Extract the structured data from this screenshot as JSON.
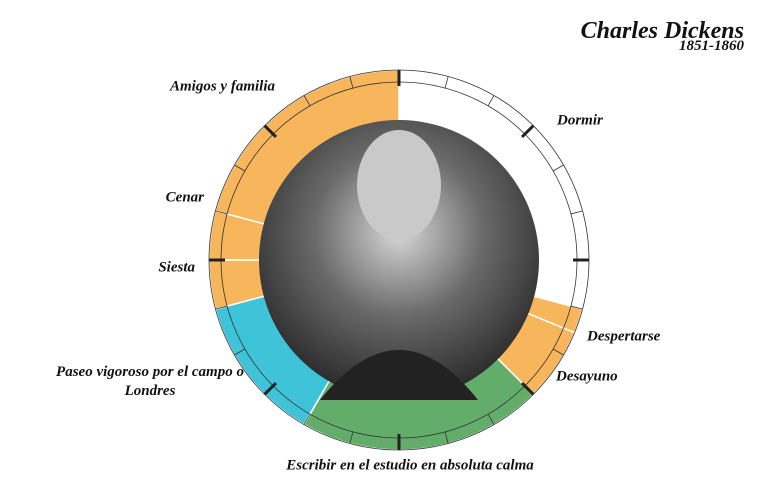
{
  "chart_data": {
    "type": "clock",
    "title": "Charles Dickens",
    "subtitle": "1851-1860",
    "range": [
      0,
      24
    ],
    "ticks": [
      0,
      1,
      2,
      3,
      4,
      5,
      6,
      7,
      8,
      9,
      10,
      11,
      12,
      13,
      14,
      15,
      16,
      17,
      18,
      19,
      20,
      21,
      22,
      23
    ],
    "major_ticks": [
      0,
      3,
      6,
      9,
      12,
      15,
      18,
      21
    ],
    "series": [
      {
        "name": "Dormir",
        "color": "#ffffff",
        "start": 0,
        "end": 7
      },
      {
        "name": "Despertarse",
        "color": "#f7b55c",
        "start": 7,
        "end": 7.5
      },
      {
        "name": "Desayuno",
        "color": "#f7b55c",
        "start": 7.5,
        "end": 9
      },
      {
        "name": "Escribir en el estudio en absoluta calma",
        "color": "#63ad6b",
        "start": 9,
        "end": 14
      },
      {
        "name": "Paseo vigoroso por el campo o Londres",
        "color": "#3ec3d9",
        "start": 14,
        "end": 17
      },
      {
        "name": "Siesta",
        "color": "#f7b55c",
        "start": 17,
        "end": 18
      },
      {
        "name": "Cenar",
        "color": "#f7b55c",
        "start": 18,
        "end": 19
      },
      {
        "name": "Amigos y familia",
        "color": "#f7b55c",
        "start": 19,
        "end": 24
      }
    ]
  }
}
